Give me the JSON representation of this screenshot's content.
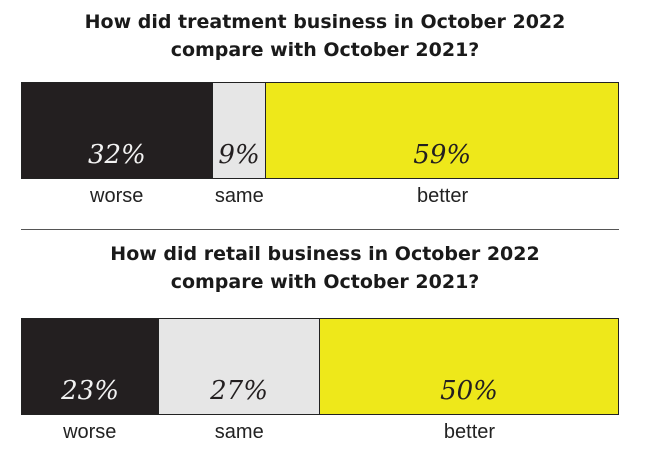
{
  "colors": {
    "worse": "#231f20",
    "same": "#e6e6e6",
    "better": "#eee81a",
    "text_dark": "#231f20",
    "text_light": "#f2f2f2"
  },
  "chart_data": [
    {
      "type": "bar",
      "title": "How did treatment business in October 2022 compare with October 2021?",
      "title_lines": [
        "How did treatment business in October 2022",
        "compare with October 2021?"
      ],
      "categories": [
        "worse",
        "same",
        "better"
      ],
      "values": [
        32,
        9,
        59
      ],
      "value_labels": [
        "32%",
        "9%",
        "59%"
      ],
      "stacked": true,
      "orientation": "horizontal"
    },
    {
      "type": "bar",
      "title": "How did retail business in October 2022 compare with October 2021?",
      "title_lines": [
        "How did retail business in October 2022",
        "compare with October 2021?"
      ],
      "categories": [
        "worse",
        "same",
        "better"
      ],
      "values": [
        23,
        27,
        50
      ],
      "value_labels": [
        "23%",
        "27%",
        "50%"
      ],
      "stacked": true,
      "orientation": "horizontal"
    }
  ]
}
